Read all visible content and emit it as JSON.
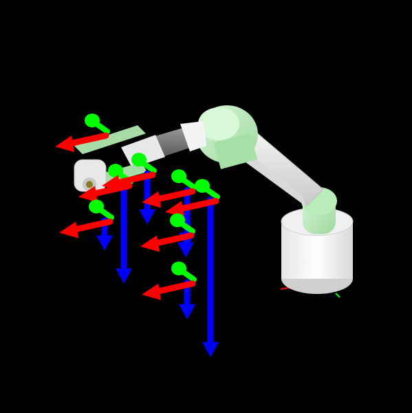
{
  "scene": {
    "background_color": "#000000",
    "robot_colors": {
      "pale_green": "#c8f0c8",
      "mid_green": "#9fdc9f",
      "white": "#f2f2f2",
      "light_gray": "#dcdcdc",
      "dark_gray": "#6e6e6e",
      "gripper_brass": "#8a7a20"
    },
    "axis_colors": {
      "x": "#ff0000",
      "y": "#00ff00",
      "z": "#0000ff"
    },
    "frame_count": 7,
    "icons": [
      "robot-arm-icon",
      "coordinate-frame-icon"
    ]
  }
}
